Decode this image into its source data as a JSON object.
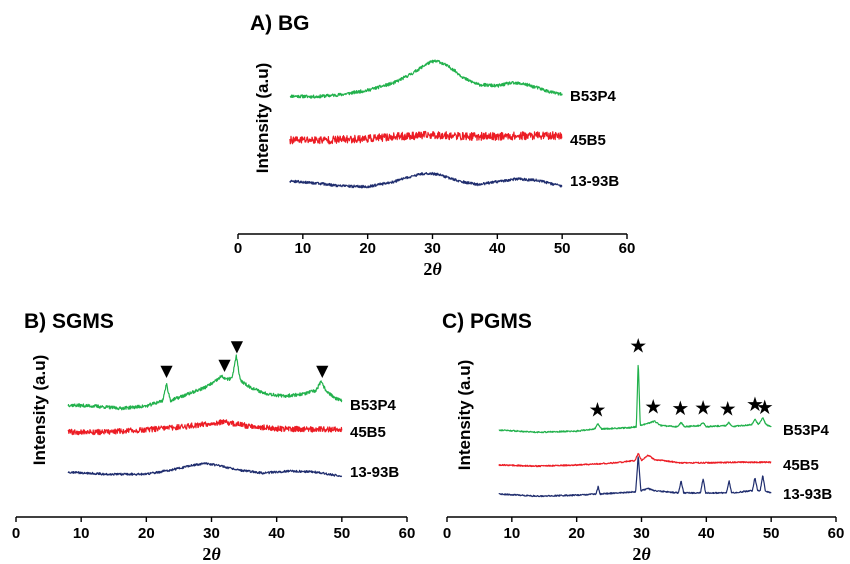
{
  "chart_data": [
    {
      "id": "A",
      "type": "line",
      "title": "A) BG",
      "xlabel_prefix": "2",
      "xlabel_var": "θ",
      "ylabel": "Intensity (a.u)",
      "xlim": [
        0,
        60
      ],
      "xticks": [
        0,
        10,
        20,
        30,
        40,
        50,
        60
      ],
      "x_range": [
        8,
        50
      ],
      "series": [
        {
          "name": "B53P4",
          "color": "#22b14c",
          "noise": 0.022,
          "profile": [
            [
              8,
              0.48
            ],
            [
              12,
              0.47
            ],
            [
              16,
              0.5
            ],
            [
              20,
              0.56
            ],
            [
              24,
              0.66
            ],
            [
              27,
              0.8
            ],
            [
              29,
              0.92
            ],
            [
              30,
              0.96
            ],
            [
              31,
              0.96
            ],
            [
              33,
              0.86
            ],
            [
              35,
              0.72
            ],
            [
              37,
              0.64
            ],
            [
              40,
              0.62
            ],
            [
              42,
              0.66
            ],
            [
              44,
              0.65
            ],
            [
              46,
              0.6
            ],
            [
              48,
              0.54
            ],
            [
              50,
              0.5
            ]
          ]
        },
        {
          "name": "45B5",
          "color": "#ec1c24",
          "noise": 0.055,
          "profile": [
            [
              8,
              0.0
            ],
            [
              14,
              0.0
            ],
            [
              20,
              0.02
            ],
            [
              25,
              0.05
            ],
            [
              30,
              0.07
            ],
            [
              35,
              0.05
            ],
            [
              40,
              0.05
            ],
            [
              45,
              0.06
            ],
            [
              50,
              0.06
            ]
          ]
        },
        {
          "name": "13-93B",
          "color": "#1f2d6e",
          "noise": 0.018,
          "profile": [
            [
              8,
              -0.45
            ],
            [
              12,
              -0.48
            ],
            [
              16,
              -0.52
            ],
            [
              20,
              -0.53
            ],
            [
              24,
              -0.46
            ],
            [
              27,
              -0.38
            ],
            [
              29,
              -0.34
            ],
            [
              31,
              -0.36
            ],
            [
              34,
              -0.45
            ],
            [
              37,
              -0.5
            ],
            [
              40,
              -0.46
            ],
            [
              43,
              -0.42
            ],
            [
              46,
              -0.44
            ],
            [
              50,
              -0.52
            ]
          ]
        }
      ],
      "markers": []
    },
    {
      "id": "B",
      "type": "line",
      "title": "B) SGMS",
      "xlabel_prefix": "2",
      "xlabel_var": "θ",
      "ylabel": "Intensity (a.u)",
      "xlim": [
        0,
        60
      ],
      "xticks": [
        0,
        10,
        20,
        30,
        40,
        50,
        60
      ],
      "x_range": [
        8,
        50
      ],
      "series": [
        {
          "name": "B53P4",
          "color": "#22b14c",
          "noise": 0.03,
          "profile": [
            [
              8,
              0.4
            ],
            [
              12,
              0.38
            ],
            [
              16,
              0.34
            ],
            [
              20,
              0.38
            ],
            [
              22.5,
              0.48
            ],
            [
              23.1,
              0.78
            ],
            [
              23.7,
              0.48
            ],
            [
              26,
              0.58
            ],
            [
              29,
              0.72
            ],
            [
              30.5,
              0.82
            ],
            [
              31.5,
              0.92
            ],
            [
              32.5,
              0.86
            ],
            [
              33.2,
              0.9
            ],
            [
              33.8,
              1.3
            ],
            [
              34.4,
              0.85
            ],
            [
              36,
              0.72
            ],
            [
              38,
              0.62
            ],
            [
              41,
              0.56
            ],
            [
              44,
              0.6
            ],
            [
              46,
              0.66
            ],
            [
              46.8,
              0.82
            ],
            [
              47.6,
              0.66
            ],
            [
              49,
              0.52
            ],
            [
              50,
              0.48
            ]
          ]
        },
        {
          "name": "45B5",
          "color": "#ec1c24",
          "noise": 0.05,
          "profile": [
            [
              8,
              0.0
            ],
            [
              14,
              0.0
            ],
            [
              20,
              0.04
            ],
            [
              26,
              0.1
            ],
            [
              30,
              0.16
            ],
            [
              32,
              0.18
            ],
            [
              35,
              0.12
            ],
            [
              40,
              0.06
            ],
            [
              45,
              0.05
            ],
            [
              50,
              0.05
            ]
          ]
        },
        {
          "name": "13-93B",
          "color": "#1f2d6e",
          "noise": 0.02,
          "profile": [
            [
              8,
              -0.44
            ],
            [
              14,
              -0.48
            ],
            [
              20,
              -0.48
            ],
            [
              24,
              -0.4
            ],
            [
              27,
              -0.32
            ],
            [
              29,
              -0.28
            ],
            [
              31,
              -0.32
            ],
            [
              34,
              -0.4
            ],
            [
              38,
              -0.46
            ],
            [
              42,
              -0.42
            ],
            [
              46,
              -0.44
            ],
            [
              50,
              -0.52
            ]
          ]
        }
      ],
      "markers": [
        {
          "x": 23.1,
          "symbol": "▼"
        },
        {
          "x": 32.0,
          "symbol": "▼"
        },
        {
          "x": 33.9,
          "symbol": "▼"
        },
        {
          "x": 47.0,
          "symbol": "▼"
        }
      ]
    },
    {
      "id": "C",
      "type": "line",
      "title": "C) PGMS",
      "xlabel_prefix": "2",
      "xlabel_var": "θ",
      "ylabel": "Intensity (a.u)",
      "xlim": [
        0,
        60
      ],
      "xticks": [
        0,
        10,
        20,
        30,
        40,
        50,
        60
      ],
      "x_range": [
        8,
        50
      ],
      "series": [
        {
          "name": "B53P4",
          "color": "#22b14c",
          "noise": 0.012,
          "profile": [
            [
              8,
              0.34
            ],
            [
              14,
              0.3
            ],
            [
              20,
              0.32
            ],
            [
              22.8,
              0.36
            ],
            [
              23.3,
              0.46
            ],
            [
              23.8,
              0.36
            ],
            [
              28,
              0.38
            ],
            [
              29.2,
              0.4
            ],
            [
              29.5,
              1.6
            ],
            [
              29.8,
              0.42
            ],
            [
              31,
              0.46
            ],
            [
              32,
              0.5
            ],
            [
              33,
              0.42
            ],
            [
              35.6,
              0.4
            ],
            [
              36.1,
              0.48
            ],
            [
              36.6,
              0.4
            ],
            [
              39,
              0.42
            ],
            [
              39.5,
              0.48
            ],
            [
              40,
              0.4
            ],
            [
              43,
              0.42
            ],
            [
              43.5,
              0.48
            ],
            [
              44,
              0.4
            ],
            [
              47,
              0.44
            ],
            [
              47.5,
              0.54
            ],
            [
              48,
              0.44
            ],
            [
              48.2,
              0.46
            ],
            [
              48.7,
              0.56
            ],
            [
              49.2,
              0.44
            ],
            [
              50,
              0.4
            ]
          ]
        },
        {
          "name": "45B5",
          "color": "#ec1c24",
          "noise": 0.012,
          "profile": [
            [
              8,
              0.0
            ],
            [
              14,
              -0.02
            ],
            [
              20,
              0.0
            ],
            [
              26,
              0.04
            ],
            [
              29,
              0.08
            ],
            [
              29.5,
              0.22
            ],
            [
              30,
              0.08
            ],
            [
              31,
              0.18
            ],
            [
              32,
              0.1
            ],
            [
              36,
              0.04
            ],
            [
              40,
              0.04
            ],
            [
              45,
              0.05
            ],
            [
              50,
              0.05
            ]
          ]
        },
        {
          "name": "13-93B",
          "color": "#1f2d6e",
          "noise": 0.012,
          "profile": [
            [
              8,
              -0.36
            ],
            [
              14,
              -0.4
            ],
            [
              20,
              -0.38
            ],
            [
              23.0,
              -0.36
            ],
            [
              23.3,
              -0.22
            ],
            [
              23.6,
              -0.36
            ],
            [
              29.1,
              -0.32
            ],
            [
              29.5,
              0.34
            ],
            [
              29.9,
              -0.3
            ],
            [
              31,
              -0.26
            ],
            [
              32,
              -0.3
            ],
            [
              35.7,
              -0.34
            ],
            [
              36.1,
              -0.12
            ],
            [
              36.5,
              -0.34
            ],
            [
              39.1,
              -0.34
            ],
            [
              39.5,
              -0.08
            ],
            [
              39.9,
              -0.34
            ],
            [
              43.1,
              -0.34
            ],
            [
              43.5,
              -0.12
            ],
            [
              43.9,
              -0.34
            ],
            [
              47.1,
              -0.3
            ],
            [
              47.5,
              -0.06
            ],
            [
              47.9,
              -0.3
            ],
            [
              48.3,
              -0.3
            ],
            [
              48.7,
              -0.02
            ],
            [
              49.1,
              -0.3
            ],
            [
              50,
              -0.34
            ]
          ]
        }
      ],
      "markers": [
        {
          "x": 23.2,
          "symbol": "★"
        },
        {
          "x": 29.5,
          "symbol": "★"
        },
        {
          "x": 31.8,
          "symbol": "★"
        },
        {
          "x": 36.0,
          "symbol": "★"
        },
        {
          "x": 39.5,
          "symbol": "★"
        },
        {
          "x": 43.3,
          "symbol": "★"
        },
        {
          "x": 47.5,
          "symbol": "★"
        },
        {
          "x": 49.0,
          "symbol": "★"
        }
      ]
    }
  ]
}
